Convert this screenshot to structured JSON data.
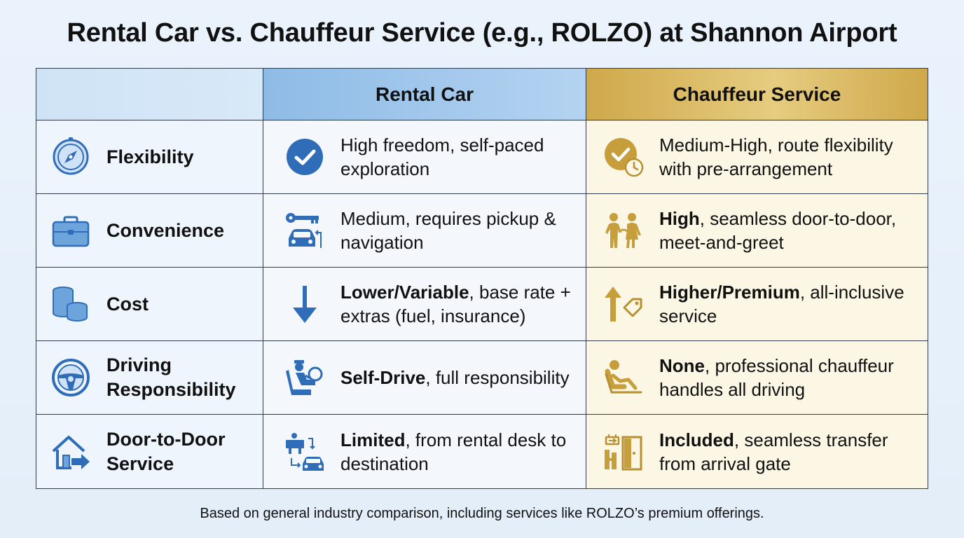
{
  "title": "Rental Car vs. Chauffeur Service (e.g., ROLZO) at Shannon Airport",
  "columns": {
    "rental": "Rental Car",
    "chauffeur": "Chauffeur Service"
  },
  "rows": [
    {
      "category": "Flexibility",
      "category_icon": "compass-icon",
      "rental": {
        "icon": "checkmark-circle-icon",
        "bold": "",
        "text": "High freedom, self-paced exploration"
      },
      "chauffeur": {
        "icon": "check-clock-icon",
        "bold": "",
        "text": "Medium-High, route flexibility with pre-arrangement"
      }
    },
    {
      "category": "Convenience",
      "category_icon": "briefcase-icon",
      "rental": {
        "icon": "key-car-icon",
        "bold": "",
        "text": "Medium, requires pickup & navigation"
      },
      "chauffeur": {
        "icon": "meet-greet-people-icon",
        "bold": "High",
        "text": ", seamless door-to-door, meet-and-greet"
      }
    },
    {
      "category": "Cost",
      "category_icon": "coin-stack-icon",
      "rental": {
        "icon": "arrow-down-icon",
        "bold": "Lower/Variable",
        "text": ", base rate + extras (fuel, insurance)"
      },
      "chauffeur": {
        "icon": "arrow-up-tag-icon",
        "bold": "Higher/Premium",
        "text": ", all-inclusive service"
      }
    },
    {
      "category": "Driving Responsibility",
      "category_icon": "steering-wheel-icon",
      "rental": {
        "icon": "driver-seat-icon",
        "bold": "Self-Drive",
        "text": ", full responsibility"
      },
      "chauffeur": {
        "icon": "reclining-passenger-icon",
        "bold": "None",
        "text": ", professional chauffeur handles all driving"
      }
    },
    {
      "category": "Door-to-Door Service",
      "category_icon": "house-arrow-icon",
      "rental": {
        "icon": "rental-desk-car-icon",
        "bold": "Limited",
        "text": ", from rental desk to destination"
      },
      "chauffeur": {
        "icon": "arrival-gate-icon",
        "bold": "Included",
        "text": ", seamless transfer from arrival gate"
      }
    }
  ],
  "footnote": "Based on general industry comparison, including services like ROLZO’s premium offerings.",
  "colors": {
    "blue_icon": "#2f6db8",
    "gold_icon": "#b8902f",
    "rental_header": "#a9cbee",
    "chauffeur_header": "#dcbd66"
  }
}
